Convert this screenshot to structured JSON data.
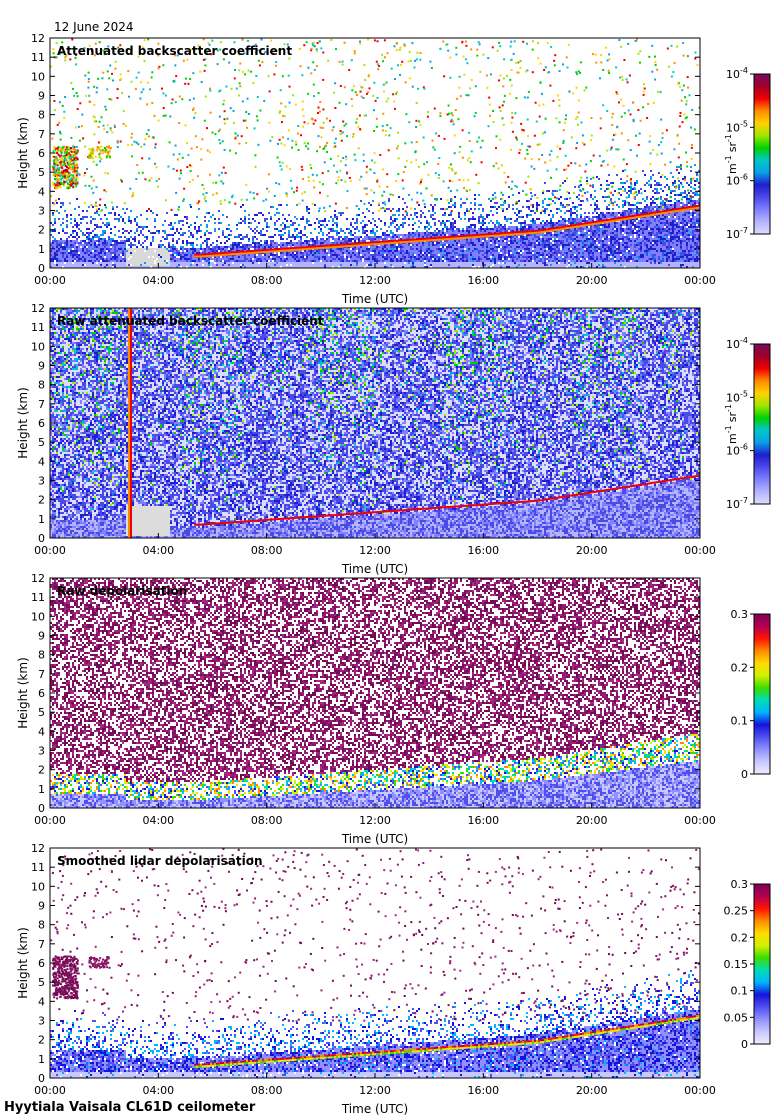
{
  "date": "12 June 2024",
  "footer": "Hyytiala Vaisala CL61D ceilometer",
  "chart_data": [
    {
      "type": "heatmap",
      "title": "Attenuated backscatter coefficient",
      "xlabel": "Time (UTC)",
      "ylabel": "Height (km)",
      "xticks": [
        "00:00",
        "04:00",
        "08:00",
        "12:00",
        "16:00",
        "20:00",
        "00:00"
      ],
      "xlim": [
        0,
        24
      ],
      "ylim": [
        0,
        12
      ],
      "yticks": [
        "0",
        "1",
        "2",
        "3",
        "4",
        "5",
        "6",
        "7",
        "8",
        "9",
        "10",
        "11",
        "12"
      ],
      "colorbar": {
        "scale": "log",
        "range": [
          1e-07,
          0.0001
        ],
        "ticks": [
          {
            "base": "10",
            "exp": "-7",
            "value": 1e-07
          },
          {
            "base": "10",
            "exp": "-6",
            "value": 1e-06
          },
          {
            "base": "10",
            "exp": "-5",
            "value": 1e-05
          },
          {
            "base": "10",
            "exp": "-4",
            "value": 0.0001
          }
        ],
        "unit": {
          "m": "m",
          "m_exp": "-1",
          "sr": "sr",
          "sr_exp": "-1"
        }
      }
    },
    {
      "type": "heatmap",
      "title": "Raw attenuated backscatter coefficient",
      "xlabel": "Time (UTC)",
      "ylabel": "Height (km)",
      "xticks": [
        "00:00",
        "04:00",
        "08:00",
        "12:00",
        "16:00",
        "20:00",
        "00:00"
      ],
      "xlim": [
        0,
        24
      ],
      "ylim": [
        0,
        12
      ],
      "yticks": [
        "0",
        "1",
        "2",
        "3",
        "4",
        "5",
        "6",
        "7",
        "8",
        "9",
        "10",
        "11",
        "12"
      ],
      "colorbar": {
        "scale": "log",
        "range": [
          1e-07,
          0.0001
        ],
        "ticks": [
          {
            "base": "10",
            "exp": "-7",
            "value": 1e-07
          },
          {
            "base": "10",
            "exp": "-6",
            "value": 1e-06
          },
          {
            "base": "10",
            "exp": "-5",
            "value": 1e-05
          },
          {
            "base": "10",
            "exp": "-4",
            "value": 0.0001
          }
        ],
        "unit": {
          "m": "m",
          "m_exp": "-1",
          "sr": "sr",
          "sr_exp": "-1"
        }
      }
    },
    {
      "type": "heatmap",
      "title": "Raw depolarisation",
      "xlabel": "Time (UTC)",
      "ylabel": "Height (km)",
      "xticks": [
        "00:00",
        "04:00",
        "08:00",
        "12:00",
        "16:00",
        "20:00",
        "00:00"
      ],
      "xlim": [
        0,
        24
      ],
      "ylim": [
        0,
        12
      ],
      "yticks": [
        "0",
        "1",
        "2",
        "3",
        "4",
        "5",
        "6",
        "7",
        "8",
        "9",
        "10",
        "11",
        "12"
      ],
      "colorbar": {
        "scale": "linear",
        "range": [
          0,
          0.3
        ],
        "ticks": [
          {
            "label": "0",
            "value": 0
          },
          {
            "label": "0.1",
            "value": 0.1
          },
          {
            "label": "0.2",
            "value": 0.2
          },
          {
            "label": "0.3",
            "value": 0.3
          }
        ]
      }
    },
    {
      "type": "heatmap",
      "title": "Smoothed lidar depolarisation",
      "xlabel": "Time (UTC)",
      "ylabel": "Height (km)",
      "xticks": [
        "00:00",
        "04:00",
        "08:00",
        "12:00",
        "16:00",
        "20:00",
        "00:00"
      ],
      "xlim": [
        0,
        24
      ],
      "ylim": [
        0,
        12
      ],
      "yticks": [
        "0",
        "1",
        "2",
        "3",
        "4",
        "5",
        "6",
        "7",
        "8",
        "9",
        "10",
        "11",
        "12"
      ],
      "colorbar": {
        "scale": "linear",
        "range": [
          0,
          0.3
        ],
        "ticks": [
          {
            "label": "0",
            "value": 0
          },
          {
            "label": "0.05",
            "value": 0.05
          },
          {
            "label": "0.1",
            "value": 0.1
          },
          {
            "label": "0.15",
            "value": 0.15
          },
          {
            "label": "0.2",
            "value": 0.2
          },
          {
            "label": "0.25",
            "value": 0.25
          },
          {
            "label": "0.3",
            "value": 0.3
          }
        ]
      }
    }
  ]
}
